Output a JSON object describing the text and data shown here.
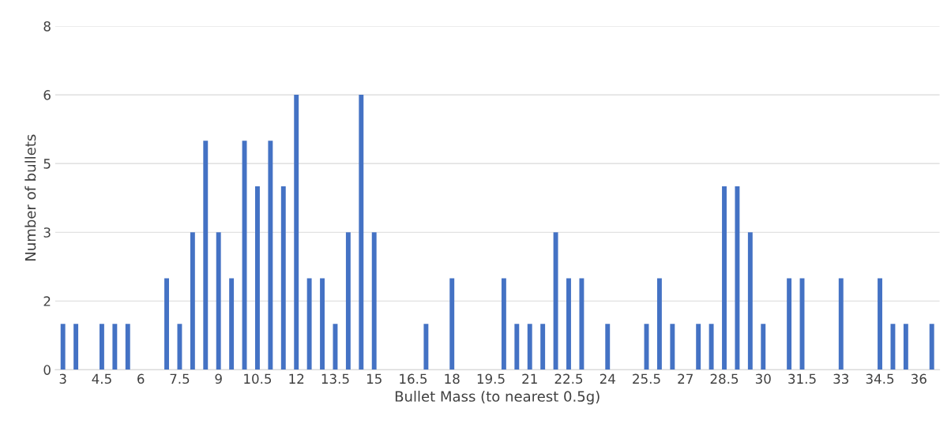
{
  "chart_data": {
    "type": "bar",
    "xlabel": "Bullet Mass (to nearest 0.5g)",
    "ylabel": "Number of bullets",
    "categories": [
      "3",
      null,
      null,
      "4.5",
      null,
      null,
      "6",
      null,
      null,
      "7.5",
      null,
      null,
      "9",
      null,
      null,
      "10.5",
      null,
      null,
      "12",
      null,
      null,
      "13.5",
      null,
      null,
      "15",
      null,
      null,
      "16.5",
      null,
      null,
      "18",
      null,
      null,
      "19.5",
      null,
      null,
      "21",
      null,
      null,
      "22.5",
      null,
      null,
      "24",
      null,
      null,
      "25.5",
      null,
      null,
      "27",
      null,
      null,
      "28.5",
      null,
      null,
      "30",
      null,
      null,
      "31.5",
      null,
      null,
      "33",
      null,
      null,
      "34.5",
      null,
      null,
      "36",
      null
    ],
    "values": [
      1.07,
      1.07,
      0,
      1.07,
      1.07,
      1.07,
      0,
      0,
      2.13,
      1.07,
      3.2,
      5.33,
      3.2,
      2.13,
      5.33,
      4.27,
      5.33,
      4.27,
      6.4,
      2.13,
      2.13,
      1.07,
      3.2,
      6.4,
      3.2,
      0,
      0,
      0,
      1.07,
      0,
      2.13,
      0,
      0,
      0,
      2.13,
      1.07,
      1.07,
      1.07,
      3.2,
      2.13,
      2.13,
      0,
      1.07,
      0,
      0,
      1.07,
      2.13,
      1.07,
      0,
      1.07,
      1.07,
      4.27,
      4.27,
      3.2,
      1.07,
      0,
      2.13,
      2.13,
      0,
      0,
      2.13,
      0,
      0,
      2.13,
      1.07,
      1.07,
      0,
      1.07
    ],
    "color": "#4472c4",
    "ylim": [
      0,
      8
    ],
    "yticks": [
      0,
      {
        "value": 1.6,
        "label": "2"
      },
      {
        "value": 3.2,
        "label": "3"
      },
      {
        "value": 4.8,
        "label": "5"
      },
      {
        "value": 6.4,
        "label": "6"
      },
      8
    ],
    "grid": "y"
  }
}
